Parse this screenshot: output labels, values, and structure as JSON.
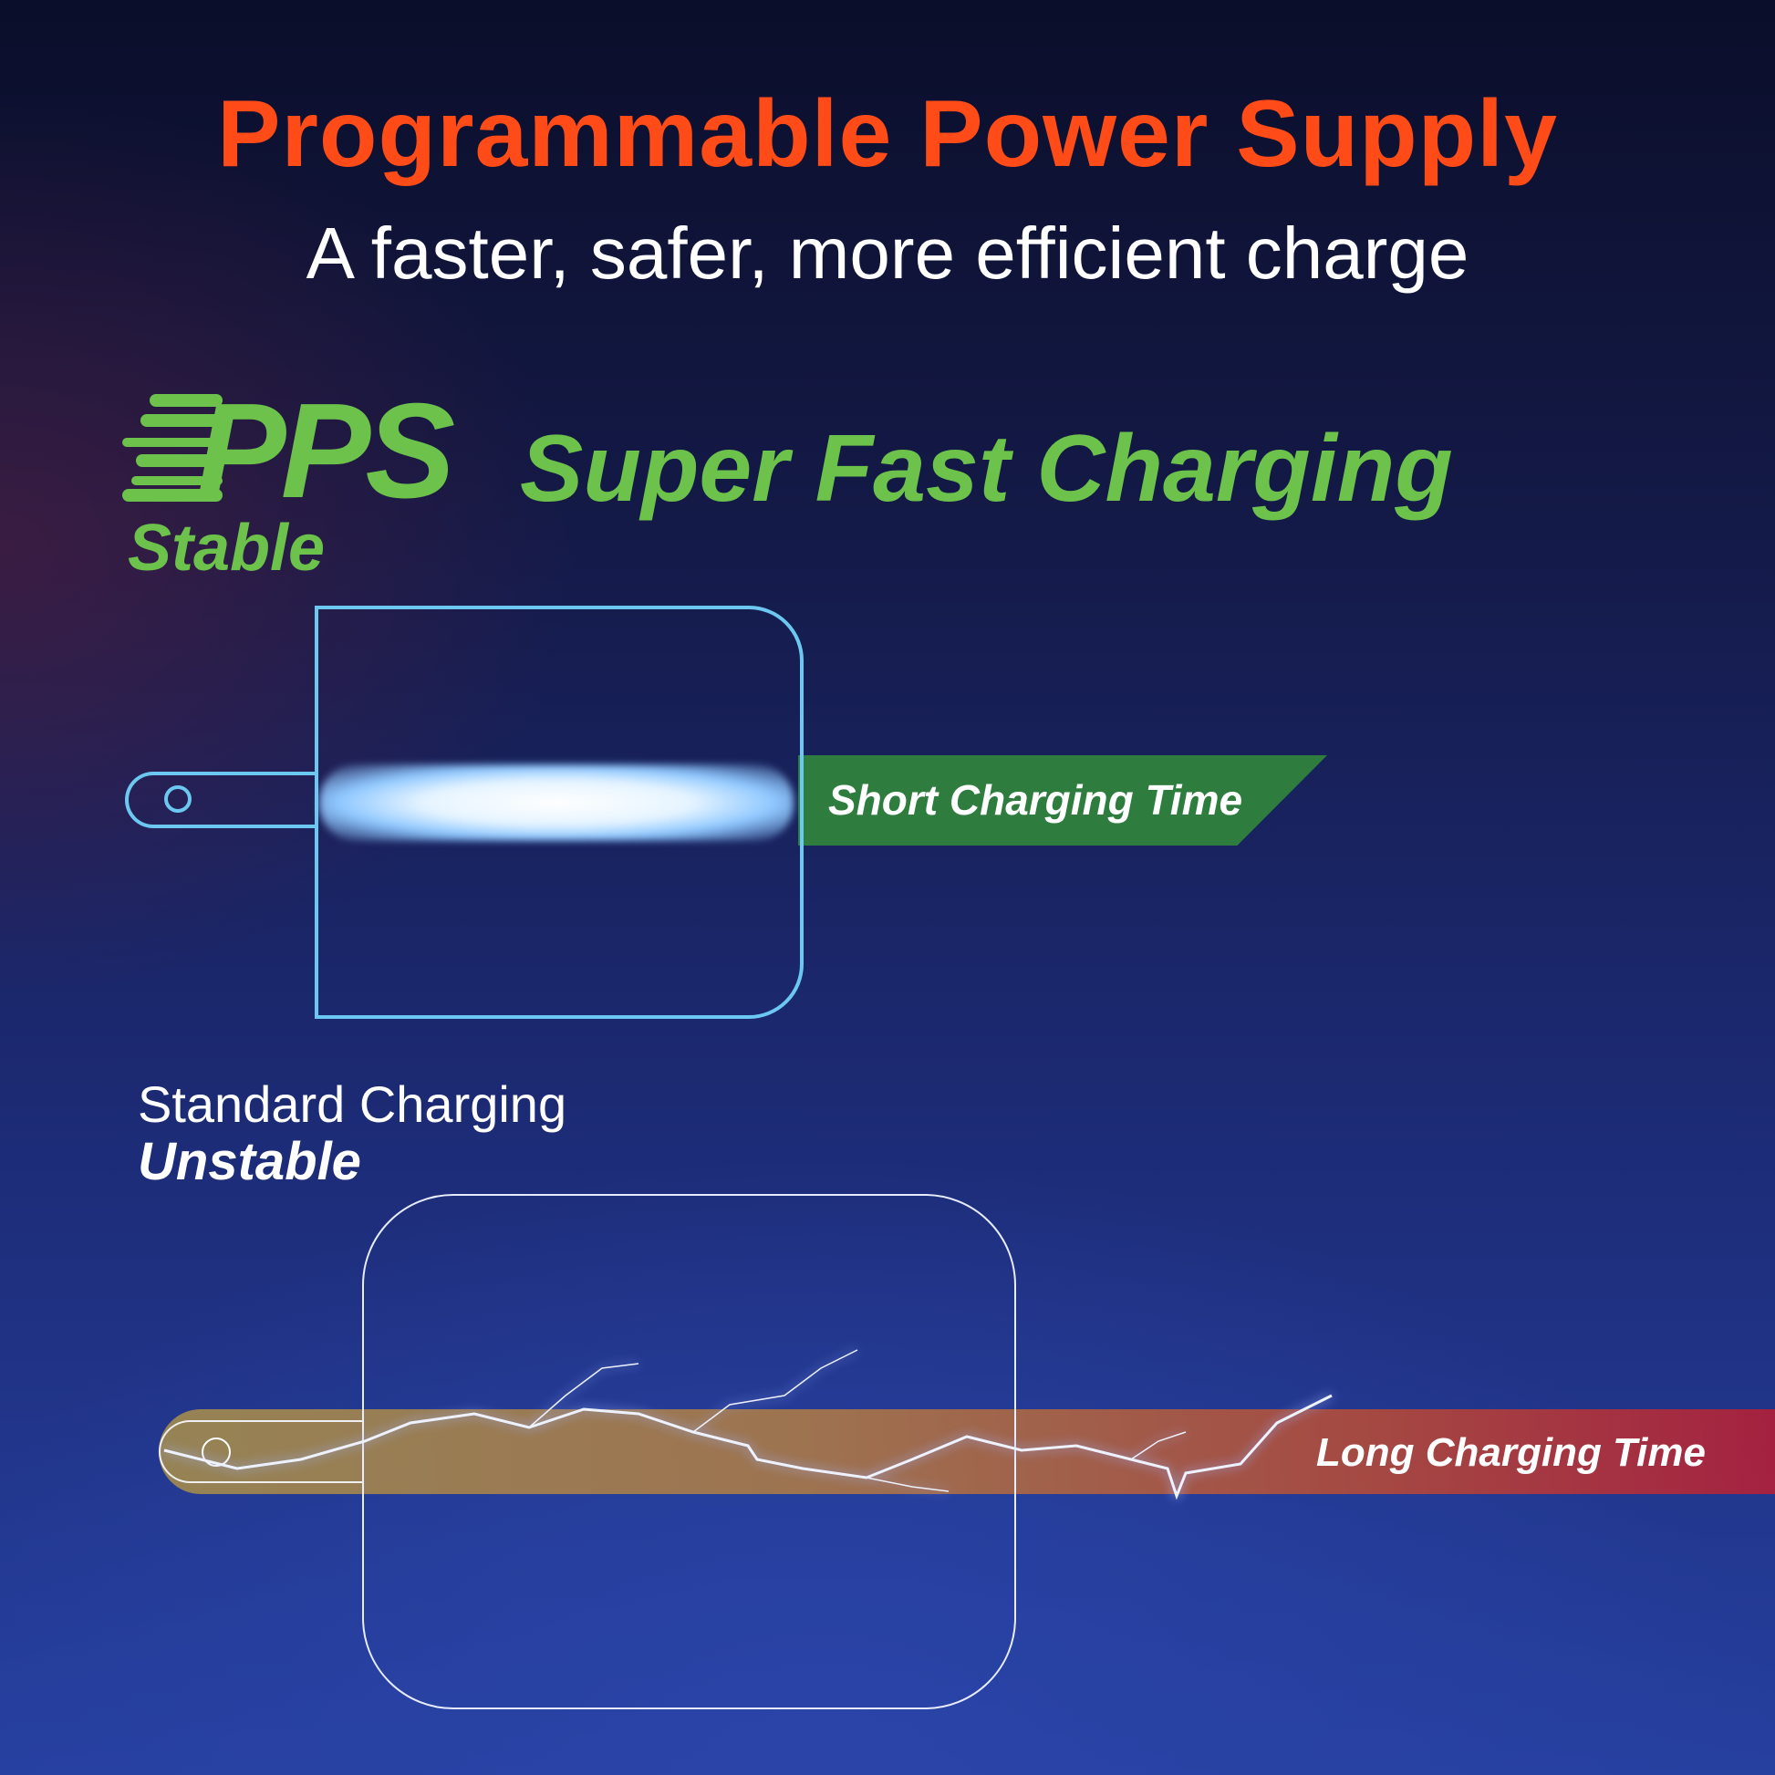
{
  "header": {
    "title": "Programmable Power Supply",
    "subtitle": "A faster, safer, more efficient charge"
  },
  "pps": {
    "logo_text": "PPS",
    "headline": "Super Fast Charging",
    "stability": "Stable",
    "result": "Short Charging Time"
  },
  "standard": {
    "label": "Standard Charging",
    "stability": "Unstable",
    "result": "Long Charging Time"
  },
  "colors": {
    "title": "#ff4b17",
    "pps_green": "#6cc24a",
    "short_banner": "#2e7d3e",
    "long_bar_end": "#b0203a",
    "outline_cyan": "#6cc8f0"
  }
}
